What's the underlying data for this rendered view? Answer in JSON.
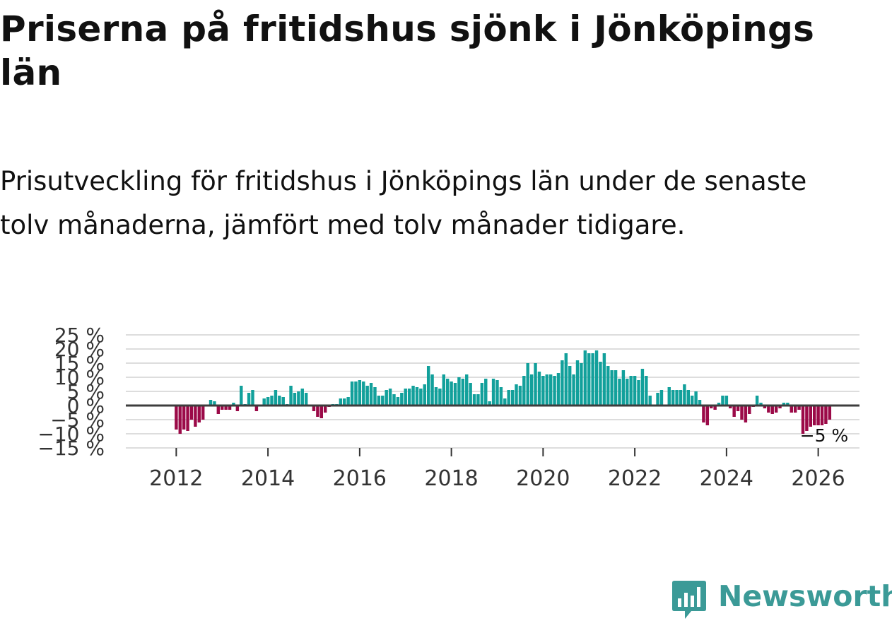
{
  "title": "Priserna på fritidshus sjönk i Jönköpings län",
  "subtitle": "Prisutveckling för fritidshus i Jönköpings län under de senaste tolv månaderna, jämfört med tolv månader tidigare.",
  "brand": {
    "name": "Newsworthy",
    "color": "#3b9a97",
    "icon": "bar-chart-badge-icon"
  },
  "colors": {
    "positive": "#12a09b",
    "negative": "#9b0a48",
    "gridline": "#dddddd",
    "zeroline": "#3d3d3d"
  },
  "chart_data": {
    "type": "bar",
    "title": "",
    "xlabel": "",
    "ylabel": "",
    "ylim": [
      -15,
      25
    ],
    "xlim": [
      2010.9,
      2026.9
    ],
    "grid": true,
    "legend": "none",
    "y_ticks": [
      -15,
      -10,
      -5,
      0,
      5,
      10,
      15,
      20,
      25
    ],
    "y_tick_labels": [
      "−15 %",
      "−10 %",
      "−5 %",
      "0 %",
      "5 %",
      "10 %",
      "15 %",
      "20 %",
      "25 %"
    ],
    "x_ticks": [
      2012,
      2014,
      2016,
      2018,
      2020,
      2022,
      2024,
      2026
    ],
    "x_tick_labels": [
      "2012",
      "2014",
      "2016",
      "2018",
      "2020",
      "2022",
      "2024",
      "2026"
    ],
    "end_label": "−5 %",
    "series": [
      {
        "start": "2012-01",
        "frequency": "monthly",
        "values": [
          -8.5,
          -10,
          -8.5,
          -9,
          -5,
          -7.5,
          -6,
          -5,
          0,
          2,
          1.5,
          -3,
          -1.5,
          -1.5,
          -1.5,
          1,
          -2,
          7,
          0.5,
          4.5,
          5.5,
          -2,
          0,
          2.5,
          3,
          3.5,
          5.5,
          3.5,
          3,
          0.5,
          7,
          4.5,
          5,
          6,
          4.5,
          0,
          -2,
          -4,
          -4.5,
          -2.5,
          -0.5,
          0.5,
          0.5,
          2.5,
          2.5,
          3,
          8.5,
          8.5,
          9,
          8.5,
          7,
          8,
          6.5,
          3.5,
          3.5,
          5.5,
          6,
          4,
          3,
          4.5,
          6,
          6,
          7,
          6.5,
          6,
          7.5,
          14,
          11,
          6.5,
          6,
          11,
          9.5,
          8.5,
          8,
          10,
          9.5,
          11,
          8,
          4,
          4,
          8,
          9.5,
          1.5,
          9.5,
          9,
          6.5,
          2.5,
          5.5,
          5.5,
          7.5,
          7,
          10.5,
          15,
          11,
          15,
          12,
          10.5,
          11,
          11,
          10.5,
          11.5,
          16,
          18.5,
          14,
          11,
          16,
          15,
          19.5,
          18.5,
          18.5,
          19.5,
          15.5,
          18.5,
          14,
          12.5,
          12.5,
          9.5,
          12.5,
          9.5,
          10.5,
          10.5,
          9,
          13,
          10.5,
          3.5,
          0,
          4.5,
          5.5,
          0,
          6.5,
          5.5,
          5.5,
          5.5,
          7.5,
          5.5,
          3.5,
          5,
          2,
          -6,
          -7,
          -1,
          -1.5,
          1,
          3.5,
          3.5,
          -1,
          -4,
          -2,
          -5,
          -6,
          -3,
          -0.5,
          3.5,
          1,
          -1,
          -2.5,
          -3,
          -2.5,
          -1,
          1,
          1,
          -2.5,
          -2.5,
          -1.5,
          -10,
          -9,
          -7.5,
          -7,
          -7,
          -7,
          -6.5,
          -5
        ]
      }
    ]
  }
}
